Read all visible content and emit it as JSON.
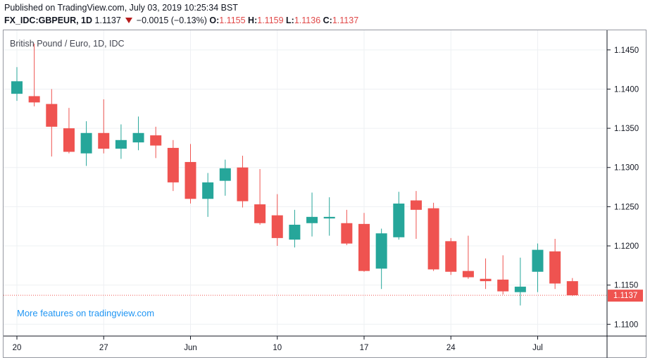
{
  "header": {
    "published": "Published on TradingView.com, July 03, 2019 10:25:34 BST",
    "symbol": "FX_IDC:GBPEUR, 1D",
    "last": "1.1137",
    "change": "−0.0015 (−0.13%)",
    "o_label": "O:",
    "o_value": "1.1155",
    "h_label": "H:",
    "h_value": "1.1159",
    "l_label": "L:",
    "l_value": "1.1136",
    "c_label": "C:",
    "c_value": "1.1137"
  },
  "chart_name": "British Pound / Euro, 1D, IDC",
  "promo": "More features on tradingview.com",
  "colors": {
    "up": "#26a69a",
    "down": "#ef5350",
    "grid": "#eef0f3",
    "axis": "#131722",
    "last_line": "#ef5350"
  },
  "chart_data": {
    "type": "candlestick",
    "title": "British Pound / Euro, 1D, IDC",
    "ylim": [
      1.1085,
      1.1475
    ],
    "y_ticks": [
      1.11,
      1.115,
      1.12,
      1.125,
      1.13,
      1.135,
      1.14,
      1.145
    ],
    "y_tick_labels": [
      "1.1100",
      "1.1150",
      "1.1200",
      "1.1250",
      "1.1300",
      "1.1350",
      "1.1400",
      "1.1450"
    ],
    "x_ticks": [
      {
        "index": 0,
        "label": "20"
      },
      {
        "index": 5,
        "label": "27"
      },
      {
        "index": 10,
        "label": "Jun"
      },
      {
        "index": 15,
        "label": "10"
      },
      {
        "index": 20,
        "label": "17"
      },
      {
        "index": 25,
        "label": "24"
      },
      {
        "index": 30,
        "label": "Jul"
      }
    ],
    "last_price": 1.1137,
    "last_price_label": "1.1137",
    "candles": [
      {
        "o": 1.1394,
        "h": 1.1428,
        "l": 1.1385,
        "c": 1.141
      },
      {
        "o": 1.1391,
        "h": 1.1458,
        "l": 1.1378,
        "c": 1.1383
      },
      {
        "o": 1.1381,
        "h": 1.14,
        "l": 1.1314,
        "c": 1.1352
      },
      {
        "o": 1.135,
        "h": 1.1376,
        "l": 1.1318,
        "c": 1.132
      },
      {
        "o": 1.1318,
        "h": 1.1359,
        "l": 1.1302,
        "c": 1.1344
      },
      {
        "o": 1.1344,
        "h": 1.1387,
        "l": 1.1318,
        "c": 1.1324
      },
      {
        "o": 1.1324,
        "h": 1.1355,
        "l": 1.1311,
        "c": 1.1335
      },
      {
        "o": 1.1332,
        "h": 1.1365,
        "l": 1.1322,
        "c": 1.1344
      },
      {
        "o": 1.1341,
        "h": 1.1352,
        "l": 1.1312,
        "c": 1.1328
      },
      {
        "o": 1.1325,
        "h": 1.1335,
        "l": 1.127,
        "c": 1.1281
      },
      {
        "o": 1.1307,
        "h": 1.133,
        "l": 1.1254,
        "c": 1.126
      },
      {
        "o": 1.126,
        "h": 1.1293,
        "l": 1.1237,
        "c": 1.1281
      },
      {
        "o": 1.1283,
        "h": 1.131,
        "l": 1.1264,
        "c": 1.1299
      },
      {
        "o": 1.13,
        "h": 1.1315,
        "l": 1.1249,
        "c": 1.1257
      },
      {
        "o": 1.1253,
        "h": 1.1298,
        "l": 1.1227,
        "c": 1.1229
      },
      {
        "o": 1.1239,
        "h": 1.1266,
        "l": 1.12,
        "c": 1.121
      },
      {
        "o": 1.1208,
        "h": 1.1246,
        "l": 1.1198,
        "c": 1.1227
      },
      {
        "o": 1.1229,
        "h": 1.1268,
        "l": 1.1212,
        "c": 1.1237
      },
      {
        "o": 1.1235,
        "h": 1.1262,
        "l": 1.1213,
        "c": 1.1237
      },
      {
        "o": 1.1229,
        "h": 1.1246,
        "l": 1.1201,
        "c": 1.1203
      },
      {
        "o": 1.1228,
        "h": 1.1242,
        "l": 1.1167,
        "c": 1.1168
      },
      {
        "o": 1.1171,
        "h": 1.1222,
        "l": 1.1145,
        "c": 1.1216
      },
      {
        "o": 1.1211,
        "h": 1.1269,
        "l": 1.1208,
        "c": 1.1254
      },
      {
        "o": 1.1258,
        "h": 1.127,
        "l": 1.1209,
        "c": 1.1246
      },
      {
        "o": 1.1248,
        "h": 1.1255,
        "l": 1.1168,
        "c": 1.117
      },
      {
        "o": 1.1206,
        "h": 1.121,
        "l": 1.1163,
        "c": 1.1167
      },
      {
        "o": 1.1168,
        "h": 1.1213,
        "l": 1.1158,
        "c": 1.116
      },
      {
        "o": 1.1158,
        "h": 1.1184,
        "l": 1.1145,
        "c": 1.1155
      },
      {
        "o": 1.1157,
        "h": 1.1188,
        "l": 1.1138,
        "c": 1.1142
      },
      {
        "o": 1.1141,
        "h": 1.1185,
        "l": 1.1124,
        "c": 1.1148
      },
      {
        "o": 1.1167,
        "h": 1.1203,
        "l": 1.1141,
        "c": 1.1195
      },
      {
        "o": 1.1193,
        "h": 1.1209,
        "l": 1.1145,
        "c": 1.1152
      },
      {
        "o": 1.1155,
        "h": 1.1159,
        "l": 1.1136,
        "c": 1.1137
      }
    ]
  }
}
